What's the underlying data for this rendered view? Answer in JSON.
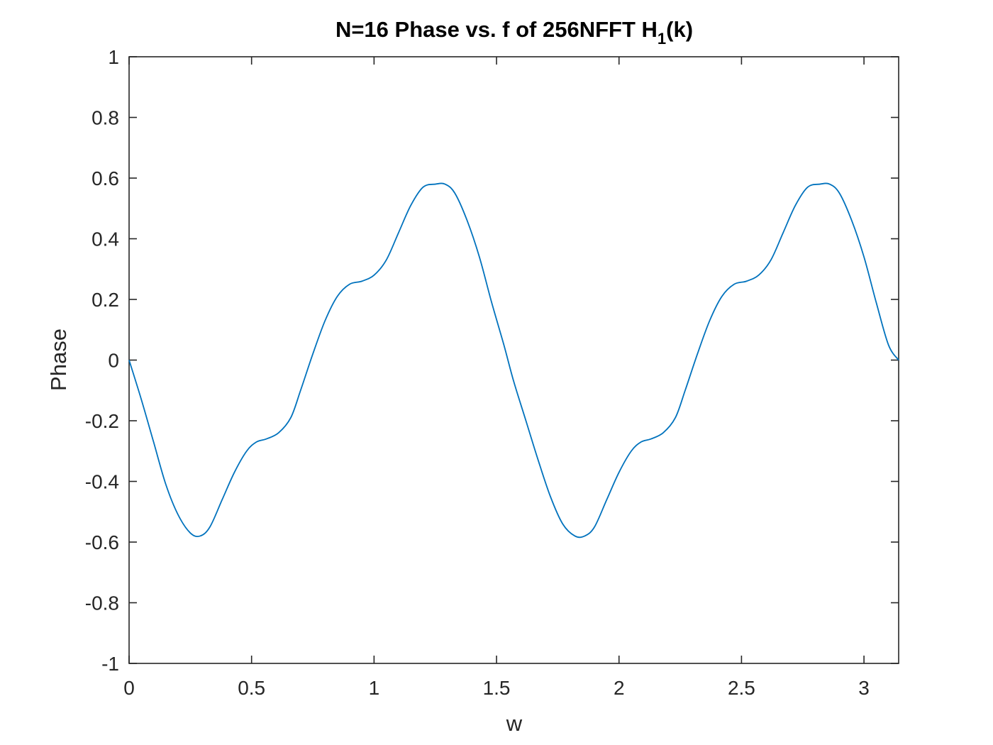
{
  "chart_data": {
    "type": "line",
    "title": "N=16 Phase vs. f of 256NFFT H",
    "title_subscript": "1",
    "title_suffix": "(k)",
    "xlabel": "w",
    "ylabel": "Phase",
    "xlim": [
      0,
      3.1416
    ],
    "ylim": [
      -1,
      1
    ],
    "xticks": [
      0,
      0.5,
      1,
      1.5,
      2,
      2.5,
      3
    ],
    "xtick_labels": [
      "0",
      "0.5",
      "1",
      "1.5",
      "2",
      "2.5",
      "3"
    ],
    "yticks": [
      -1,
      -0.8,
      -0.6,
      -0.4,
      -0.2,
      0,
      0.2,
      0.4,
      0.6,
      0.8,
      1
    ],
    "ytick_labels": [
      "-1",
      "-0.8",
      "-0.6",
      "-0.4",
      "-0.2",
      "0",
      "0.2",
      "0.4",
      "0.6",
      "0.8",
      "1"
    ],
    "grid": false,
    "line_color": "#0072BD",
    "series": [
      {
        "x": [
          0,
          0.05,
          0.1,
          0.15,
          0.2,
          0.25,
          0.29,
          0.33,
          0.38,
          0.43,
          0.48,
          0.52,
          0.56,
          0.61,
          0.66,
          0.7,
          0.75,
          0.8,
          0.85,
          0.9,
          0.95,
          1.0,
          1.05,
          1.1,
          1.15,
          1.2,
          1.25,
          1.29,
          1.33,
          1.38,
          1.43,
          1.48,
          1.53,
          1.57,
          1.62,
          1.67,
          1.72,
          1.77,
          1.82,
          1.86,
          1.9,
          1.95,
          2.0,
          2.05,
          2.09,
          2.13,
          2.18,
          2.23,
          2.27,
          2.32,
          2.37,
          2.42,
          2.47,
          2.52,
          2.57,
          2.62,
          2.67,
          2.72,
          2.77,
          2.82,
          2.86,
          2.9,
          2.95,
          3.0,
          3.05,
          3.1,
          3.1416
        ],
        "y": [
          0,
          -0.13,
          -0.27,
          -0.41,
          -0.51,
          -0.57,
          -0.58,
          -0.55,
          -0.46,
          -0.37,
          -0.3,
          -0.27,
          -0.26,
          -0.24,
          -0.19,
          -0.1,
          0.02,
          0.13,
          0.21,
          0.25,
          0.26,
          0.28,
          0.33,
          0.42,
          0.51,
          0.57,
          0.58,
          0.58,
          0.55,
          0.46,
          0.34,
          0.19,
          0.05,
          -0.07,
          -0.2,
          -0.33,
          -0.45,
          -0.54,
          -0.58,
          -0.58,
          -0.55,
          -0.46,
          -0.37,
          -0.3,
          -0.27,
          -0.26,
          -0.24,
          -0.19,
          -0.1,
          0.02,
          0.13,
          0.21,
          0.25,
          0.26,
          0.28,
          0.33,
          0.42,
          0.51,
          0.57,
          0.58,
          0.58,
          0.55,
          0.46,
          0.34,
          0.19,
          0.05,
          0
        ]
      }
    ]
  }
}
